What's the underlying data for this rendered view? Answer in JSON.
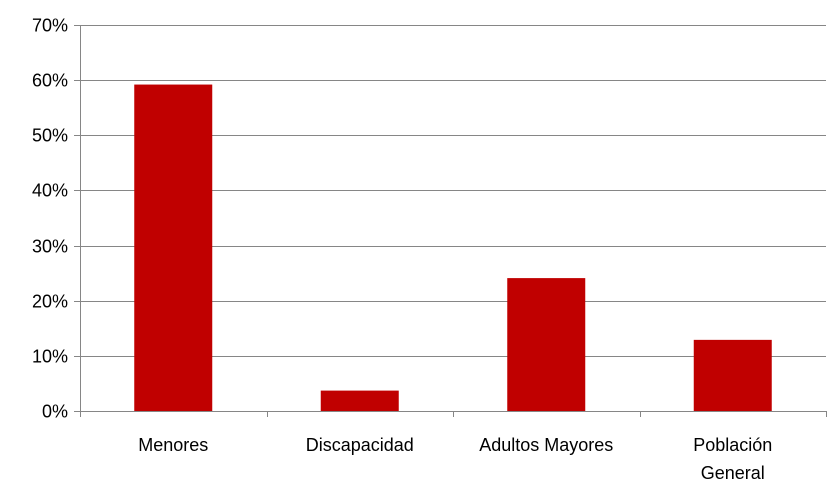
{
  "chart_data": {
    "type": "bar",
    "categories": [
      "Menores",
      "Discapacidad",
      "Adultos Mayores",
      "Población General"
    ],
    "category_label_lines": [
      [
        "Menores"
      ],
      [
        "Discapacidad"
      ],
      [
        "Adultos Mayores"
      ],
      [
        "Población",
        "General"
      ]
    ],
    "values": [
      0.592,
      0.037,
      0.241,
      0.129
    ],
    "ylim": [
      0,
      0.7
    ],
    "yticks": [
      0,
      0.1,
      0.2,
      0.3,
      0.4,
      0.5,
      0.6,
      0.7
    ],
    "ytick_labels": [
      "0%",
      "10%",
      "20%",
      "30%",
      "40%",
      "50%",
      "60%",
      "70%"
    ],
    "grid": true,
    "legend": "none",
    "title": "",
    "xlabel": "",
    "ylabel": "",
    "colors": {
      "bar": "#c00000",
      "grid": "#868686",
      "axis": "#868686"
    }
  }
}
